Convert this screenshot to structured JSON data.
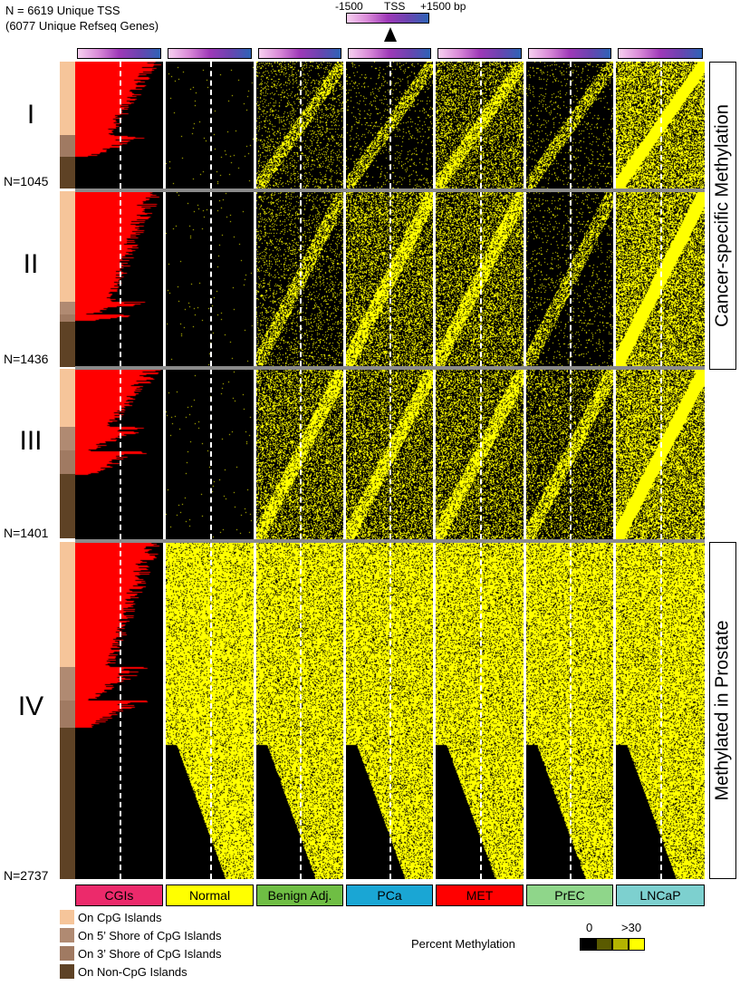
{
  "header": {
    "line1": "N = 6619 Unique TSS",
    "line2": "(6077 Unique Refseq Genes)"
  },
  "scale_bar": {
    "left": "-1500",
    "center": "TSS",
    "right": "+1500 bp"
  },
  "columns": [
    {
      "label": "CGIs",
      "color": "#ec2a6b"
    },
    {
      "label": "Normal",
      "color": "#ffff00"
    },
    {
      "label": "Benign Adj.",
      "color": "#6fbe44"
    },
    {
      "label": "PCa",
      "color": "#1aa6d4"
    },
    {
      "label": "MET",
      "color": "#ff0000"
    },
    {
      "label": "PrEC",
      "color": "#8fd68a"
    },
    {
      "label": "LNCaP",
      "color": "#7dd0cf"
    }
  ],
  "clusters": [
    {
      "numeral": "I",
      "count": "N=1045"
    },
    {
      "numeral": "II",
      "count": "N=1436"
    },
    {
      "numeral": "III",
      "count": "N=1401"
    },
    {
      "numeral": "IV",
      "count": "N=2737"
    }
  ],
  "side_labels": {
    "top": "Cancer-specific Methylation",
    "bottom": "Methylated in Prostate"
  },
  "legend": {
    "items": [
      {
        "label": "On CpG Islands",
        "color": "#f6c59a"
      },
      {
        "label": "On 5’ Shore of CpG Islands",
        "color": "#b08a72"
      },
      {
        "label": "On 3’ Shore of CpG Islands",
        "color": "#a07a62"
      },
      {
        "label": "On Non-CpG Islands",
        "color": "#5e4225"
      }
    ]
  },
  "methylation_scale": {
    "title": "Percent Methylation",
    "min_label": "0",
    "max_label": ">30",
    "colors": [
      "#000000",
      "#5a5a00",
      "#b4b400",
      "#ffff00"
    ]
  },
  "colors": {
    "cgi": "#ff0000",
    "methylation": "#ffff00",
    "background": "#000000",
    "separator": "#8a8a8a"
  }
}
